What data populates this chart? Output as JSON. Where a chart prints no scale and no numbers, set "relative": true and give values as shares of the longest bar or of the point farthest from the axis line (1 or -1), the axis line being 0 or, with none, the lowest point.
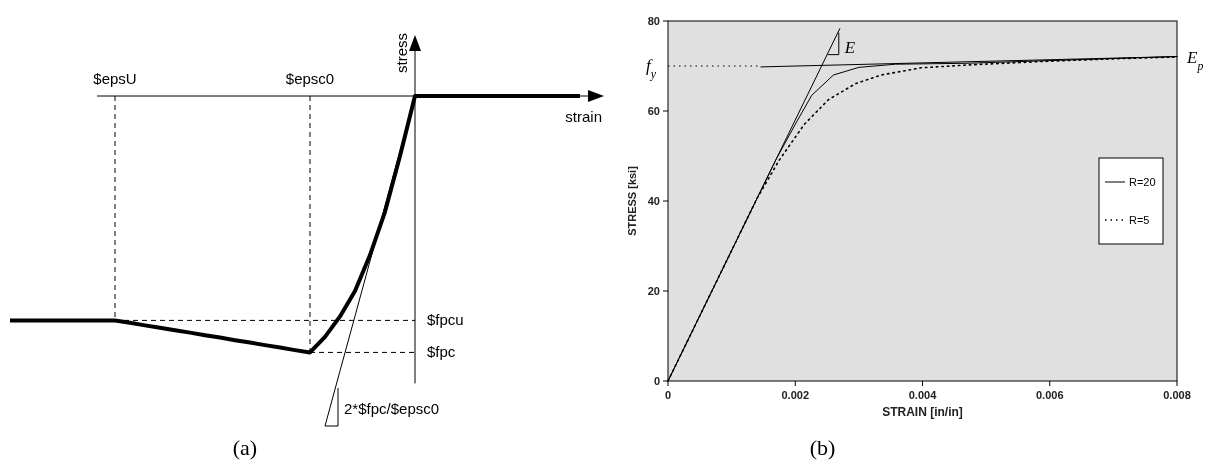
{
  "chart_data": [
    {
      "type": "line",
      "relative": true,
      "xlabel": "strain",
      "ylabel": "stress",
      "categories": [
        null,
        null,
        null,
        null,
        null,
        null,
        null,
        "$epsU",
        null,
        null,
        null,
        null,
        null,
        null,
        null,
        null,
        null,
        null,
        null,
        null,
        "$epsc0",
        null,
        null,
        null,
        null,
        null,
        null,
        null,
        null,
        null,
        null,
        null,
        null,
        null,
        null,
        null,
        null,
        null,
        null
      ],
      "series": [
        {
          "color": "#000000",
          "values": [
            -0.68,
            -0.68,
            -0.68,
            -0.68,
            -0.68,
            -0.68,
            -0.68,
            -0.68,
            -0.687,
            -0.695,
            -0.702,
            -0.71,
            -0.717,
            -0.725,
            -0.732,
            -0.74,
            -0.747,
            -0.755,
            -0.762,
            -0.77,
            -0.777,
            -0.73,
            -0.668,
            -0.591,
            -0.482,
            -0.351,
            -0.182,
            0,
            0,
            0,
            0,
            0,
            0,
            0,
            0,
            0,
            0,
            0,
            0
          ]
        },
        {
          "color": "#000000",
          "values": [
            null,
            null,
            null,
            null,
            null,
            null,
            null,
            null,
            null,
            null,
            null,
            null,
            null,
            null,
            null,
            null,
            null,
            null,
            null,
            null,
            null,
            -1,
            -0.833,
            -0.667,
            -0.5,
            -0.333,
            -0.167,
            0,
            null,
            null,
            null,
            null,
            null,
            null,
            null,
            null,
            null,
            null,
            null
          ]
        }
      ],
      "ref_lines": [
        {
          "axis": "x",
          "value": "$epsU",
          "line_style": "dashed"
        },
        {
          "axis": "x",
          "value": "$epsc0",
          "line_style": "dashed"
        },
        {
          "axis": "y",
          "value": -0.68,
          "label": "$fpcu",
          "line_style": "dashed"
        },
        {
          "axis": "y",
          "value": -0.777,
          "label": "$fpc",
          "line_style": "dashed"
        }
      ],
      "annotations": [
        "2*$fpc/$epsc0",
        "(a)"
      ]
    },
    {
      "type": "line",
      "xlabel": "STRAIN [in/in]",
      "ylabel": "STRESS [ksi]",
      "xlim": [
        0,
        0.008
      ],
      "xticks": [
        0,
        0.002,
        0.004,
        0.006,
        0.008
      ],
      "ylim": [
        0,
        80
      ],
      "yticks": [
        0,
        20,
        40,
        60,
        80
      ],
      "legend": "right",
      "series": [
        {
          "name": "R=20",
          "color": "#000000",
          "line_style": "solid",
          "x": [
            0,
            0.0017,
            0.00203,
            0.00226,
            0.0026,
            0.003,
            0.00358,
            0.00467,
            0.008
          ],
          "values": [
            0,
            49.3,
            57.8,
            63.5,
            68,
            69.7,
            70.4,
            70.6,
            72.1
          ]
        },
        {
          "name": "R=5",
          "color": "#000000",
          "line_style": "dotted",
          "x": [
            0,
            0.0014,
            0.00174,
            0.00214,
            0.00252,
            0.00295,
            0.00335,
            0.00398,
            0.00467,
            0.00588,
            0.00702,
            0.008
          ],
          "values": [
            0,
            40.6,
            48.9,
            57,
            62.5,
            66.1,
            68,
            69.6,
            70.2,
            71,
            71.6,
            72
          ]
        },
        {
          "color": "#000000",
          "line_style": "solid",
          "x": [
            0,
            0.0027
          ],
          "values": [
            0,
            78.3
          ]
        },
        {
          "color": "#000000",
          "line_style": "solid",
          "x": [
            0.00146,
            0.008
          ],
          "values": [
            69.8,
            72.1
          ]
        }
      ],
      "ref_lines": [
        {
          "axis": "y",
          "value": 70,
          "label": "f$_{y}$",
          "line_style": "dotted"
        }
      ],
      "annotations": [
        "E",
        {
          "text": "E$_{p}$",
          "x": 0.008,
          "y": 72.1
        },
        "(b)"
      ]
    }
  ]
}
